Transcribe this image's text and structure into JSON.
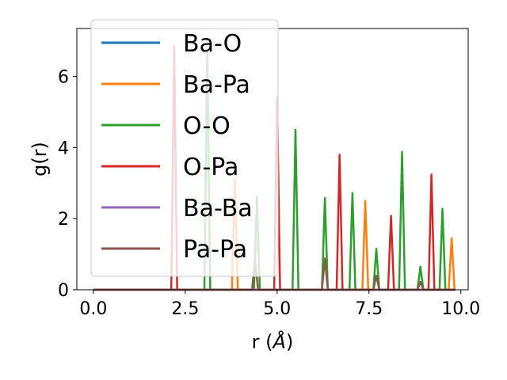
{
  "chart_data": {
    "type": "line",
    "xlabel": "r (",
    "xlabel_unit": "Å",
    "xlabel_close": ")",
    "ylabel": "g(r)",
    "xlim": [
      -0.45,
      10.2
    ],
    "ylim": [
      0,
      7.35
    ],
    "xticks": [
      0.0,
      2.5,
      5.0,
      7.5,
      10.0
    ],
    "xtick_labels": [
      "0.0",
      "2.5",
      "5.0",
      "7.5",
      "10.0"
    ],
    "yticks": [
      0,
      2,
      4,
      6
    ],
    "ytick_labels": [
      "0",
      "2",
      "4",
      "6"
    ],
    "grid": false,
    "legend_position": "upper-left",
    "peak_halfwidth": 0.08,
    "series": [
      {
        "name": "Ba-O",
        "color": "#1f77b4",
        "peaks": []
      },
      {
        "name": "Ba-Pa",
        "color": "#ff7f0e",
        "peaks": [
          [
            3.85,
            3.12
          ],
          [
            7.4,
            2.5
          ],
          [
            9.75,
            1.45
          ]
        ]
      },
      {
        "name": "O-O",
        "color": "#2ca02c",
        "peaks": [
          [
            3.1,
            6.75
          ],
          [
            4.45,
            2.62
          ],
          [
            5.5,
            4.5
          ],
          [
            6.3,
            2.58
          ],
          [
            7.05,
            2.72
          ],
          [
            7.7,
            1.15
          ],
          [
            8.4,
            3.88
          ],
          [
            8.9,
            0.65
          ],
          [
            9.5,
            2.28
          ]
        ]
      },
      {
        "name": "O-Pa",
        "color": "#d62728",
        "peaks": [
          [
            2.2,
            6.85
          ],
          [
            5.0,
            5.42
          ],
          [
            6.7,
            3.8
          ],
          [
            8.1,
            2.08
          ],
          [
            9.2,
            3.24
          ]
        ]
      },
      {
        "name": "Ba-Ba",
        "color": "#9467bd",
        "peaks": []
      },
      {
        "name": "Pa-Pa",
        "color": "#8c564b",
        "peaks": [
          [
            4.4,
            0.9
          ],
          [
            6.3,
            0.88
          ],
          [
            7.7,
            0.4
          ],
          [
            8.9,
            0.22
          ]
        ]
      }
    ]
  }
}
